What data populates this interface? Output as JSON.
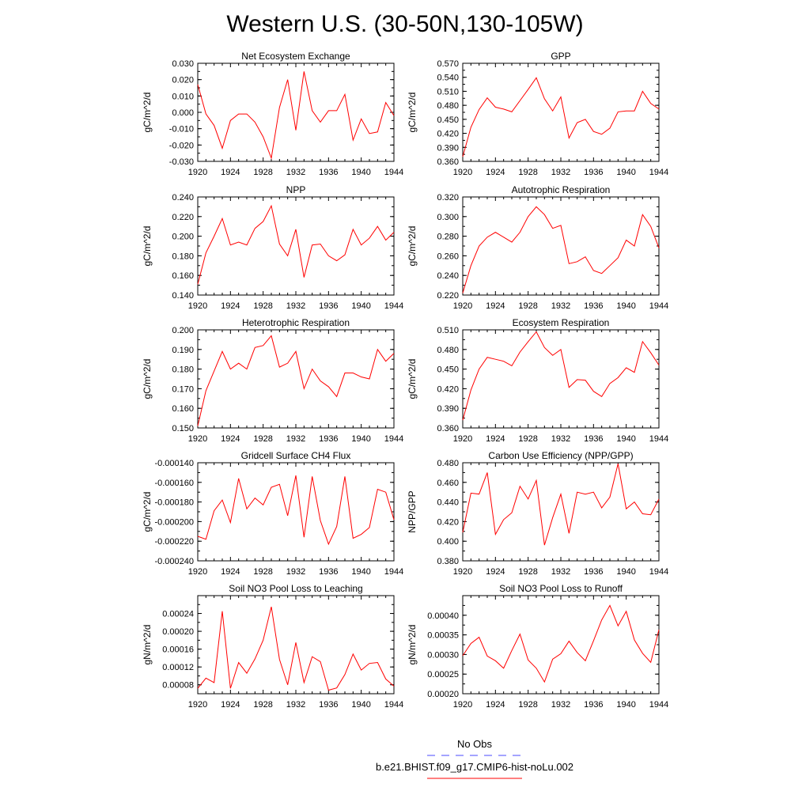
{
  "figure_title": "Western U.S. (30-50N,130-105W)",
  "legend": {
    "obs_label": "No Obs",
    "obs_color": "#4a4aff",
    "model_label": "b.e21.BHIST.f09_g17.CMIP6-hist-noLu.002",
    "model_color": "#ff0000"
  },
  "chart_data": [
    {
      "type": "line",
      "title": "Net Ecosystem Exchange",
      "ylabel": "gC/m^2/d",
      "xlim": [
        1920,
        1944
      ],
      "x_ticks": [
        "1920",
        "1924",
        "1928",
        "1932",
        "1936",
        "1940",
        "1944"
      ],
      "ylim": [
        -0.03,
        0.03
      ],
      "y_ticks": [
        "-0.030",
        "-0.020",
        "-0.010",
        "0.000",
        "0.010",
        "0.020",
        "0.030"
      ],
      "series": [
        {
          "x": [
            1920,
            1921,
            1922,
            1923,
            1924,
            1925,
            1926,
            1927,
            1928,
            1929,
            1930,
            1931,
            1932,
            1933,
            1934,
            1935,
            1936,
            1937,
            1938,
            1939,
            1940,
            1941,
            1942,
            1943,
            1944
          ],
          "y": [
            0.017,
            -0.001,
            -0.008,
            -0.022,
            -0.005,
            -0.001,
            -0.001,
            -0.006,
            -0.015,
            -0.028,
            0.003,
            0.02,
            -0.011,
            0.025,
            0.001,
            -0.006,
            0.001,
            0.001,
            0.011,
            -0.017,
            -0.004,
            -0.013,
            -0.012,
            0.006,
            -0.002
          ]
        }
      ]
    },
    {
      "type": "line",
      "title": "GPP",
      "ylabel": "gC/m^2/d",
      "xlim": [
        1920,
        1944
      ],
      "x_ticks": [
        "1920",
        "1924",
        "1928",
        "1932",
        "1936",
        "1940",
        "1944"
      ],
      "ylim": [
        0.36,
        0.57
      ],
      "y_ticks": [
        "0.360",
        "0.390",
        "0.420",
        "0.450",
        "0.480",
        "0.510",
        "0.540",
        "0.570"
      ],
      "series": [
        {
          "x": [
            1920,
            1921,
            1922,
            1923,
            1924,
            1925,
            1926,
            1927,
            1928,
            1929,
            1930,
            1931,
            1932,
            1933,
            1934,
            1935,
            1936,
            1937,
            1938,
            1939,
            1940,
            1941,
            1942,
            1943,
            1944
          ],
          "y": [
            0.37,
            0.433,
            0.471,
            0.496,
            0.476,
            0.472,
            0.466,
            0.49,
            0.514,
            0.539,
            0.494,
            0.468,
            0.498,
            0.41,
            0.443,
            0.45,
            0.424,
            0.418,
            0.431,
            0.466,
            0.468,
            0.468,
            0.51,
            0.484,
            0.472
          ]
        }
      ]
    },
    {
      "type": "line",
      "title": "NPP",
      "ylabel": "gC/m^2/d",
      "xlim": [
        1920,
        1944
      ],
      "x_ticks": [
        "1920",
        "1924",
        "1928",
        "1932",
        "1936",
        "1940",
        "1944"
      ],
      "ylim": [
        0.14,
        0.24
      ],
      "y_ticks": [
        "0.140",
        "0.160",
        "0.180",
        "0.200",
        "0.220",
        "0.240"
      ],
      "series": [
        {
          "x": [
            1920,
            1921,
            1922,
            1923,
            1924,
            1925,
            1926,
            1927,
            1928,
            1929,
            1930,
            1931,
            1932,
            1933,
            1934,
            1935,
            1936,
            1937,
            1938,
            1939,
            1940,
            1941,
            1942,
            1943,
            1944
          ],
          "y": [
            0.151,
            0.183,
            0.2,
            0.218,
            0.191,
            0.194,
            0.191,
            0.208,
            0.215,
            0.231,
            0.192,
            0.18,
            0.207,
            0.158,
            0.191,
            0.192,
            0.18,
            0.175,
            0.181,
            0.207,
            0.191,
            0.198,
            0.21,
            0.196,
            0.204
          ]
        }
      ]
    },
    {
      "type": "line",
      "title": "Autotrophic Respiration",
      "ylabel": "gC/m^2/d",
      "xlim": [
        1920,
        1944
      ],
      "x_ticks": [
        "1920",
        "1924",
        "1928",
        "1932",
        "1936",
        "1940",
        "1944"
      ],
      "ylim": [
        0.22,
        0.32
      ],
      "y_ticks": [
        "0.220",
        "0.240",
        "0.260",
        "0.280",
        "0.300",
        "0.320"
      ],
      "series": [
        {
          "x": [
            1920,
            1921,
            1922,
            1923,
            1924,
            1925,
            1926,
            1927,
            1928,
            1929,
            1930,
            1931,
            1932,
            1933,
            1934,
            1935,
            1936,
            1937,
            1938,
            1939,
            1940,
            1941,
            1942,
            1943,
            1944
          ],
          "y": [
            0.222,
            0.25,
            0.27,
            0.279,
            0.284,
            0.279,
            0.274,
            0.284,
            0.3,
            0.31,
            0.302,
            0.288,
            0.291,
            0.252,
            0.254,
            0.259,
            0.245,
            0.242,
            0.25,
            0.258,
            0.276,
            0.27,
            0.302,
            0.29,
            0.268
          ]
        }
      ]
    },
    {
      "type": "line",
      "title": "Heterotrophic Respiration",
      "ylabel": "gC/m^2/d",
      "xlim": [
        1920,
        1944
      ],
      "x_ticks": [
        "1920",
        "1924",
        "1928",
        "1932",
        "1936",
        "1940",
        "1944"
      ],
      "ylim": [
        0.15,
        0.2
      ],
      "y_ticks": [
        "0.150",
        "0.160",
        "0.170",
        "0.180",
        "0.190",
        "0.200"
      ],
      "series": [
        {
          "x": [
            1920,
            1921,
            1922,
            1923,
            1924,
            1925,
            1926,
            1927,
            1928,
            1929,
            1930,
            1931,
            1932,
            1933,
            1934,
            1935,
            1936,
            1937,
            1938,
            1939,
            1940,
            1941,
            1942,
            1943,
            1944
          ],
          "y": [
            0.151,
            0.169,
            0.179,
            0.189,
            0.18,
            0.183,
            0.18,
            0.191,
            0.192,
            0.197,
            0.181,
            0.183,
            0.189,
            0.17,
            0.18,
            0.174,
            0.171,
            0.166,
            0.178,
            0.178,
            0.176,
            0.175,
            0.19,
            0.184,
            0.188
          ]
        }
      ]
    },
    {
      "type": "line",
      "title": "Ecosystem Respiration",
      "ylabel": "gC/m^2/d",
      "xlim": [
        1920,
        1944
      ],
      "x_ticks": [
        "1920",
        "1924",
        "1928",
        "1932",
        "1936",
        "1940",
        "1944"
      ],
      "ylim": [
        0.36,
        0.51
      ],
      "y_ticks": [
        "0.360",
        "0.390",
        "0.420",
        "0.450",
        "0.480",
        "0.510"
      ],
      "series": [
        {
          "x": [
            1920,
            1921,
            1922,
            1923,
            1924,
            1925,
            1926,
            1927,
            1928,
            1929,
            1930,
            1931,
            1932,
            1933,
            1934,
            1935,
            1936,
            1937,
            1938,
            1939,
            1940,
            1941,
            1942,
            1943,
            1944
          ],
          "y": [
            0.372,
            0.418,
            0.45,
            0.468,
            0.465,
            0.462,
            0.455,
            0.476,
            0.492,
            0.507,
            0.483,
            0.471,
            0.48,
            0.422,
            0.434,
            0.433,
            0.416,
            0.408,
            0.428,
            0.437,
            0.452,
            0.445,
            0.492,
            0.475,
            0.456
          ]
        }
      ]
    },
    {
      "type": "line",
      "title": "Gridcell Surface CH4 Flux",
      "ylabel": "gC/m^2/d",
      "xlim": [
        1920,
        1944
      ],
      "x_ticks": [
        "1920",
        "1924",
        "1928",
        "1932",
        "1936",
        "1940",
        "1944"
      ],
      "ylim": [
        -0.00024,
        -0.00014
      ],
      "y_ticks": [
        "-0.000240",
        "-0.000220",
        "-0.000200",
        "-0.000180",
        "-0.000160",
        "-0.000140"
      ],
      "series": [
        {
          "x": [
            1920,
            1921,
            1922,
            1923,
            1924,
            1925,
            1926,
            1927,
            1928,
            1929,
            1930,
            1931,
            1932,
            1933,
            1934,
            1935,
            1936,
            1937,
            1938,
            1939,
            1940,
            1941,
            1942,
            1943,
            1944
          ],
          "y": [
            -0.000215,
            -0.000218,
            -0.000189,
            -0.000178,
            -0.000201,
            -0.000156,
            -0.000187,
            -0.000176,
            -0.000183,
            -0.000165,
            -0.000162,
            -0.000194,
            -0.000153,
            -0.000216,
            -0.000154,
            -0.000199,
            -0.000223,
            -0.000205,
            -0.000154,
            -0.000217,
            -0.000213,
            -0.000206,
            -0.000167,
            -0.00017,
            -0.000198
          ]
        }
      ]
    },
    {
      "type": "line",
      "title": "Carbon Use Efficiency (NPP/GPP)",
      "ylabel": "NPP/GPP",
      "xlim": [
        1920,
        1944
      ],
      "x_ticks": [
        "1920",
        "1924",
        "1928",
        "1932",
        "1936",
        "1940",
        "1944"
      ],
      "ylim": [
        0.38,
        0.48
      ],
      "y_ticks": [
        "0.380",
        "0.400",
        "0.420",
        "0.440",
        "0.460",
        "0.480"
      ],
      "series": [
        {
          "x": [
            1920,
            1921,
            1922,
            1923,
            1924,
            1925,
            1926,
            1927,
            1928,
            1929,
            1930,
            1931,
            1932,
            1933,
            1934,
            1935,
            1936,
            1937,
            1938,
            1939,
            1940,
            1941,
            1942,
            1943,
            1944
          ],
          "y": [
            0.409,
            0.449,
            0.448,
            0.47,
            0.407,
            0.422,
            0.429,
            0.456,
            0.443,
            0.462,
            0.396,
            0.424,
            0.448,
            0.408,
            0.45,
            0.448,
            0.45,
            0.434,
            0.445,
            0.479,
            0.433,
            0.44,
            0.428,
            0.427,
            0.443
          ]
        }
      ]
    },
    {
      "type": "line",
      "title": "Soil NO3 Pool Loss to Leaching",
      "ylabel": "gN/m^2/d",
      "xlim": [
        1920,
        1944
      ],
      "x_ticks": [
        "1920",
        "1924",
        "1928",
        "1932",
        "1936",
        "1940",
        "1944"
      ],
      "ylim": [
        6e-05,
        0.00028
      ],
      "y_ticks": [
        "0.00008",
        "0.00012",
        "0.00016",
        "0.00020",
        "0.00024"
      ],
      "series": [
        {
          "x": [
            1920,
            1921,
            1922,
            1923,
            1924,
            1925,
            1926,
            1927,
            1928,
            1929,
            1930,
            1931,
            1932,
            1933,
            1934,
            1935,
            1936,
            1937,
            1938,
            1939,
            1940,
            1941,
            1942,
            1943,
            1944
          ],
          "y": [
            7.2e-05,
            9.5e-05,
            8.5e-05,
            0.000245,
            7.2e-05,
            0.00013,
            0.000106,
            0.000138,
            0.00018,
            0.000255,
            0.000137,
            8e-05,
            0.000175,
            8.5e-05,
            0.000143,
            0.000132,
            6.8e-05,
            7.3e-05,
            0.000103,
            0.000149,
            0.000113,
            0.000128,
            0.00013,
            9.3e-05,
            7.7e-05
          ]
        }
      ]
    },
    {
      "type": "line",
      "title": "Soil NO3 Pool Loss to Runoff",
      "ylabel": "gN/m^2/d",
      "xlim": [
        1920,
        1944
      ],
      "x_ticks": [
        "1920",
        "1924",
        "1928",
        "1932",
        "1936",
        "1940",
        "1944"
      ],
      "ylim": [
        0.0002,
        0.00045
      ],
      "y_ticks": [
        "0.00020",
        "0.00025",
        "0.00030",
        "0.00035",
        "0.00040"
      ],
      "series": [
        {
          "x": [
            1920,
            1921,
            1922,
            1923,
            1924,
            1925,
            1926,
            1927,
            1928,
            1929,
            1930,
            1931,
            1932,
            1933,
            1934,
            1935,
            1936,
            1937,
            1938,
            1939,
            1940,
            1941,
            1942,
            1943,
            1944
          ],
          "y": [
            0.000297,
            0.000328,
            0.000344,
            0.000296,
            0.000284,
            0.000265,
            0.00031,
            0.000352,
            0.000286,
            0.000265,
            0.00023,
            0.000288,
            0.000302,
            0.000334,
            0.000305,
            0.000284,
            0.000335,
            0.000388,
            0.000425,
            0.000373,
            0.00041,
            0.000337,
            0.000303,
            0.00028,
            0.000363
          ]
        }
      ]
    }
  ]
}
